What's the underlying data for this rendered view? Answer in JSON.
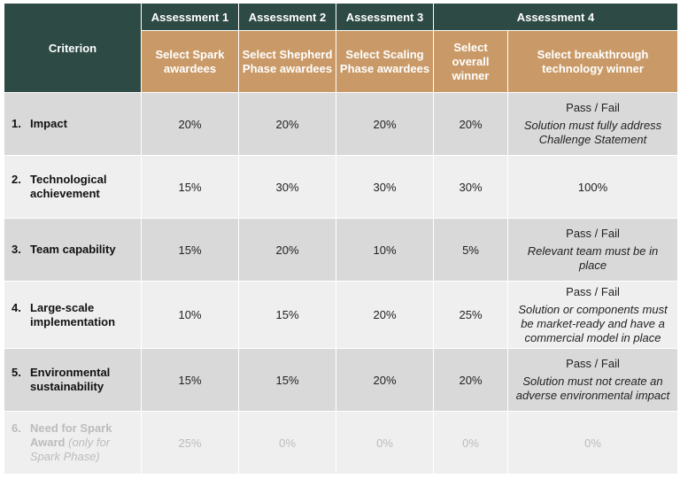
{
  "header": {
    "criterion_label": "Criterion",
    "assessments": [
      "Assessment 1",
      "Assessment 2",
      "Assessment 3",
      "Assessment 4"
    ],
    "subheaders": [
      "Select Spark awardees",
      "Select Shepherd Phase awardees",
      "Select Scaling Phase awardees",
      "Select overall winner",
      "Select breakthrough technology winner"
    ]
  },
  "rows": [
    {
      "num": "1.",
      "label": "Impact",
      "values": [
        "20%",
        "20%",
        "20%",
        "20%"
      ],
      "last_label": "Pass / Fail",
      "last_note": "Solution must fully address Challenge Statement"
    },
    {
      "num": "2.",
      "label": "Technological achievement",
      "values": [
        "15%",
        "30%",
        "30%",
        "30%"
      ],
      "last_label": "100%",
      "last_note": ""
    },
    {
      "num": "3.",
      "label": "Team capability",
      "values": [
        "15%",
        "20%",
        "10%",
        "5%"
      ],
      "last_label": "Pass / Fail",
      "last_note": "Relevant team must be in place"
    },
    {
      "num": "4.",
      "label": "Large-scale implementation",
      "values": [
        "10%",
        "15%",
        "20%",
        "25%"
      ],
      "last_label": "Pass / Fail",
      "last_note": "Solution or components must be market-ready and have a commercial model in place"
    },
    {
      "num": "5.",
      "label": "Environmental sustainability",
      "values": [
        "15%",
        "15%",
        "20%",
        "20%"
      ],
      "last_label": "Pass / Fail",
      "last_note": "Solution must not create an adverse environmental impact"
    },
    {
      "num": "6.",
      "label": "Need for Spark",
      "label_b": "Award",
      "label_c": "(only for",
      "label_d": "Spark Phase)",
      "values": [
        "25%",
        "0%",
        "0%",
        "0%"
      ],
      "last_label": "0%",
      "last_note": ""
    }
  ],
  "colors": {
    "header_dark": "#2e4a44",
    "header_orange": "#c99a68",
    "row_dark": "#d9d9d9",
    "row_light": "#efefef",
    "faded_text": "#bcbcbc"
  }
}
